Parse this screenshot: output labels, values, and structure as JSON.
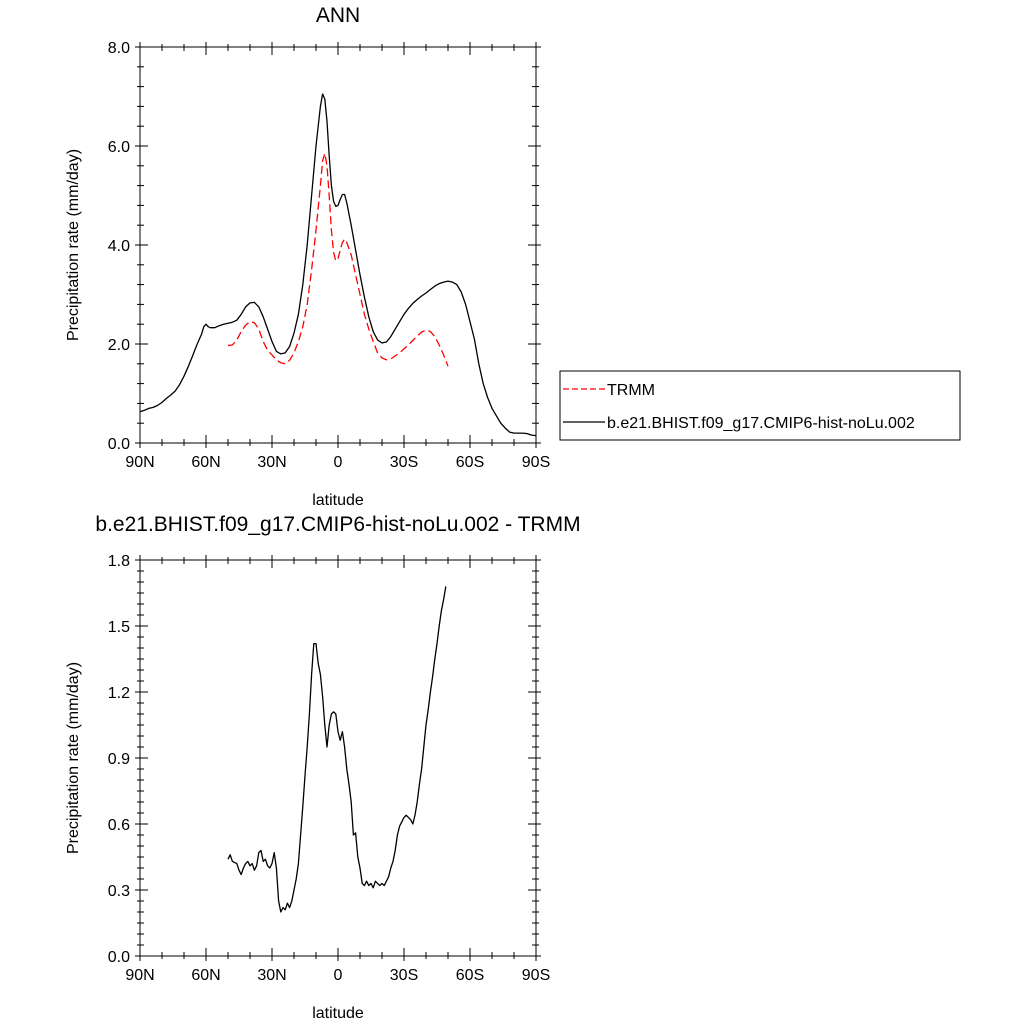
{
  "chart_data": [
    {
      "type": "line",
      "title": "ANN",
      "xlabel": "latitude",
      "ylabel": "Precipitation rate (mm/day)",
      "xlim": [
        90,
        -90
      ],
      "ylim": [
        0,
        8
      ],
      "x_ticks": [
        {
          "value": 90,
          "label": "90N"
        },
        {
          "value": 60,
          "label": "60N"
        },
        {
          "value": 30,
          "label": "30N"
        },
        {
          "value": 0,
          "label": "0"
        },
        {
          "value": -30,
          "label": "30S"
        },
        {
          "value": -60,
          "label": "60S"
        },
        {
          "value": -90,
          "label": "90S"
        }
      ],
      "y_ticks": [
        {
          "value": 0,
          "label": "0.0"
        },
        {
          "value": 2,
          "label": "2.0"
        },
        {
          "value": 4,
          "label": "4.0"
        },
        {
          "value": 6,
          "label": "6.0"
        },
        {
          "value": 8,
          "label": "8.0"
        }
      ],
      "legend_position": "right",
      "series": [
        {
          "name": "TRMM",
          "color": "#ff0000",
          "dash": "dashed",
          "points": [
            [
              50,
              1.97
            ],
            [
              48,
              1.98
            ],
            [
              46,
              2.08
            ],
            [
              44,
              2.25
            ],
            [
              42,
              2.38
            ],
            [
              40,
              2.45
            ],
            [
              38,
              2.43
            ],
            [
              36,
              2.3
            ],
            [
              34,
              2.05
            ],
            [
              32,
              1.87
            ],
            [
              30,
              1.78
            ],
            [
              28,
              1.68
            ],
            [
              26,
              1.62
            ],
            [
              24,
              1.6
            ],
            [
              22,
              1.67
            ],
            [
              20,
              1.82
            ],
            [
              18,
              2.05
            ],
            [
              16,
              2.35
            ],
            [
              14,
              2.8
            ],
            [
              12,
              3.5
            ],
            [
              10,
              4.3
            ],
            [
              8,
              5.2
            ],
            [
              7,
              5.7
            ],
            [
              6,
              5.85
            ],
            [
              5,
              5.6
            ],
            [
              4,
              5.0
            ],
            [
              3,
              4.3
            ],
            [
              2,
              3.85
            ],
            [
              1,
              3.68
            ],
            [
              0,
              3.72
            ],
            [
              -1,
              3.9
            ],
            [
              -2,
              4.05
            ],
            [
              -3,
              4.12
            ],
            [
              -4,
              4.05
            ],
            [
              -6,
              3.8
            ],
            [
              -8,
              3.4
            ],
            [
              -10,
              3.0
            ],
            [
              -12,
              2.6
            ],
            [
              -14,
              2.3
            ],
            [
              -16,
              2.05
            ],
            [
              -18,
              1.82
            ],
            [
              -20,
              1.72
            ],
            [
              -22,
              1.68
            ],
            [
              -24,
              1.7
            ],
            [
              -26,
              1.76
            ],
            [
              -28,
              1.82
            ],
            [
              -30,
              1.9
            ],
            [
              -32,
              1.98
            ],
            [
              -34,
              2.07
            ],
            [
              -36,
              2.16
            ],
            [
              -38,
              2.24
            ],
            [
              -40,
              2.28
            ],
            [
              -42,
              2.25
            ],
            [
              -44,
              2.15
            ],
            [
              -46,
              1.98
            ],
            [
              -48,
              1.78
            ],
            [
              -50,
              1.55
            ]
          ]
        },
        {
          "name": "b.e21.BHIST.f09_g17.CMIP6-hist-noLu.002",
          "color": "#000000",
          "dash": "solid",
          "points": [
            [
              90,
              0.63
            ],
            [
              88,
              0.66
            ],
            [
              86,
              0.7
            ],
            [
              84,
              0.72
            ],
            [
              82,
              0.76
            ],
            [
              80,
              0.82
            ],
            [
              78,
              0.9
            ],
            [
              76,
              0.97
            ],
            [
              74,
              1.05
            ],
            [
              72,
              1.18
            ],
            [
              70,
              1.35
            ],
            [
              68,
              1.55
            ],
            [
              66,
              1.77
            ],
            [
              64,
              2.0
            ],
            [
              62,
              2.2
            ],
            [
              61,
              2.35
            ],
            [
              60,
              2.4
            ],
            [
              59,
              2.35
            ],
            [
              58,
              2.33
            ],
            [
              56,
              2.33
            ],
            [
              54,
              2.37
            ],
            [
              52,
              2.4
            ],
            [
              50,
              2.42
            ],
            [
              48,
              2.44
            ],
            [
              46,
              2.48
            ],
            [
              44,
              2.6
            ],
            [
              42,
              2.75
            ],
            [
              40,
              2.83
            ],
            [
              38,
              2.84
            ],
            [
              36,
              2.75
            ],
            [
              34,
              2.55
            ],
            [
              32,
              2.3
            ],
            [
              30,
              2.05
            ],
            [
              28,
              1.85
            ],
            [
              26,
              1.8
            ],
            [
              24,
              1.82
            ],
            [
              22,
              1.95
            ],
            [
              20,
              2.22
            ],
            [
              18,
              2.6
            ],
            [
              16,
              3.2
            ],
            [
              14,
              4.0
            ],
            [
              12,
              5.0
            ],
            [
              10,
              6.0
            ],
            [
              8,
              6.8
            ],
            [
              7,
              7.05
            ],
            [
              6,
              6.95
            ],
            [
              5,
              6.5
            ],
            [
              4,
              5.8
            ],
            [
              3,
              5.2
            ],
            [
              2,
              4.88
            ],
            [
              1,
              4.78
            ],
            [
              0,
              4.8
            ],
            [
              -1,
              4.92
            ],
            [
              -2,
              5.02
            ],
            [
              -3,
              5.02
            ],
            [
              -4,
              4.85
            ],
            [
              -6,
              4.4
            ],
            [
              -8,
              3.9
            ],
            [
              -10,
              3.4
            ],
            [
              -12,
              2.95
            ],
            [
              -14,
              2.55
            ],
            [
              -16,
              2.25
            ],
            [
              -18,
              2.08
            ],
            [
              -20,
              2.02
            ],
            [
              -22,
              2.04
            ],
            [
              -24,
              2.15
            ],
            [
              -26,
              2.3
            ],
            [
              -28,
              2.45
            ],
            [
              -30,
              2.6
            ],
            [
              -32,
              2.72
            ],
            [
              -34,
              2.82
            ],
            [
              -36,
              2.9
            ],
            [
              -38,
              2.97
            ],
            [
              -40,
              3.03
            ],
            [
              -42,
              3.1
            ],
            [
              -44,
              3.17
            ],
            [
              -46,
              3.22
            ],
            [
              -48,
              3.25
            ],
            [
              -50,
              3.27
            ],
            [
              -52,
              3.25
            ],
            [
              -54,
              3.2
            ],
            [
              -56,
              3.05
            ],
            [
              -58,
              2.8
            ],
            [
              -60,
              2.45
            ],
            [
              -62,
              2.1
            ],
            [
              -64,
              1.6
            ],
            [
              -66,
              1.2
            ],
            [
              -68,
              0.92
            ],
            [
              -70,
              0.7
            ],
            [
              -72,
              0.55
            ],
            [
              -74,
              0.4
            ],
            [
              -76,
              0.3
            ],
            [
              -78,
              0.22
            ],
            [
              -80,
              0.2
            ],
            [
              -82,
              0.2
            ],
            [
              -84,
              0.2
            ],
            [
              -86,
              0.19
            ],
            [
              -88,
              0.16
            ],
            [
              -90,
              0.15
            ]
          ]
        }
      ]
    },
    {
      "type": "line",
      "title": "b.e21.BHIST.f09_g17.CMIP6-hist-noLu.002 - TRMM",
      "xlabel": "latitude",
      "ylabel": "Precipitation rate (mm/day)",
      "xlim": [
        90,
        -90
      ],
      "ylim": [
        0,
        1.8
      ],
      "x_ticks": [
        {
          "value": 90,
          "label": "90N"
        },
        {
          "value": 60,
          "label": "60N"
        },
        {
          "value": 30,
          "label": "30N"
        },
        {
          "value": 0,
          "label": "0"
        },
        {
          "value": -30,
          "label": "30S"
        },
        {
          "value": -60,
          "label": "60S"
        },
        {
          "value": -90,
          "label": "90S"
        }
      ],
      "y_ticks": [
        {
          "value": 0,
          "label": "0.0"
        },
        {
          "value": 0.3,
          "label": "0.3"
        },
        {
          "value": 0.6,
          "label": "0.6"
        },
        {
          "value": 0.9,
          "label": "0.9"
        },
        {
          "value": 1.2,
          "label": "1.2"
        },
        {
          "value": 1.5,
          "label": "1.5"
        },
        {
          "value": 1.8,
          "label": "1.8"
        }
      ],
      "series": [
        {
          "color": "#000000",
          "dash": "solid",
          "points": [
            [
              50,
              0.44
            ],
            [
              49,
              0.46
            ],
            [
              48,
              0.43
            ],
            [
              46,
              0.42
            ],
            [
              45,
              0.39
            ],
            [
              44,
              0.37
            ],
            [
              43,
              0.4
            ],
            [
              42,
              0.42
            ],
            [
              41,
              0.43
            ],
            [
              40,
              0.41
            ],
            [
              39,
              0.42
            ],
            [
              38,
              0.39
            ],
            [
              37,
              0.41
            ],
            [
              36,
              0.47
            ],
            [
              35,
              0.48
            ],
            [
              34,
              0.43
            ],
            [
              33,
              0.44
            ],
            [
              32,
              0.41
            ],
            [
              31,
              0.4
            ],
            [
              30,
              0.42
            ],
            [
              29,
              0.47
            ],
            [
              28,
              0.4
            ],
            [
              27,
              0.25
            ],
            [
              26,
              0.2
            ],
            [
              25,
              0.22
            ],
            [
              24,
              0.21
            ],
            [
              23,
              0.24
            ],
            [
              22,
              0.22
            ],
            [
              21,
              0.25
            ],
            [
              20,
              0.3
            ],
            [
              19,
              0.35
            ],
            [
              18,
              0.42
            ],
            [
              17,
              0.55
            ],
            [
              16,
              0.68
            ],
            [
              15,
              0.82
            ],
            [
              14,
              0.95
            ],
            [
              13,
              1.1
            ],
            [
              12,
              1.28
            ],
            [
              11,
              1.42
            ],
            [
              10,
              1.42
            ],
            [
              9,
              1.33
            ],
            [
              8,
              1.28
            ],
            [
              7,
              1.18
            ],
            [
              6,
              1.05
            ],
            [
              5,
              0.95
            ],
            [
              4,
              1.05
            ],
            [
              3,
              1.1
            ],
            [
              2,
              1.11
            ],
            [
              1,
              1.1
            ],
            [
              0,
              1.02
            ],
            [
              -1,
              0.98
            ],
            [
              -2,
              1.02
            ],
            [
              -3,
              0.95
            ],
            [
              -4,
              0.85
            ],
            [
              -5,
              0.78
            ],
            [
              -6,
              0.7
            ],
            [
              -7,
              0.55
            ],
            [
              -8,
              0.56
            ],
            [
              -9,
              0.45
            ],
            [
              -10,
              0.4
            ],
            [
              -11,
              0.33
            ],
            [
              -12,
              0.32
            ],
            [
              -13,
              0.34
            ],
            [
              -14,
              0.32
            ],
            [
              -15,
              0.33
            ],
            [
              -16,
              0.31
            ],
            [
              -17,
              0.34
            ],
            [
              -18,
              0.33
            ],
            [
              -19,
              0.32
            ],
            [
              -20,
              0.33
            ],
            [
              -21,
              0.32
            ],
            [
              -22,
              0.34
            ],
            [
              -23,
              0.36
            ],
            [
              -24,
              0.4
            ],
            [
              -25,
              0.43
            ],
            [
              -26,
              0.48
            ],
            [
              -27,
              0.55
            ],
            [
              -28,
              0.59
            ],
            [
              -29,
              0.61
            ],
            [
              -30,
              0.63
            ],
            [
              -31,
              0.64
            ],
            [
              -32,
              0.63
            ],
            [
              -33,
              0.62
            ],
            [
              -34,
              0.6
            ],
            [
              -35,
              0.64
            ],
            [
              -36,
              0.7
            ],
            [
              -37,
              0.78
            ],
            [
              -38,
              0.85
            ],
            [
              -39,
              0.95
            ],
            [
              -40,
              1.05
            ],
            [
              -41,
              1.12
            ],
            [
              -42,
              1.2
            ],
            [
              -43,
              1.27
            ],
            [
              -44,
              1.35
            ],
            [
              -45,
              1.42
            ],
            [
              -46,
              1.5
            ],
            [
              -47,
              1.57
            ],
            [
              -48,
              1.62
            ],
            [
              -49,
              1.68
            ]
          ]
        }
      ]
    }
  ]
}
